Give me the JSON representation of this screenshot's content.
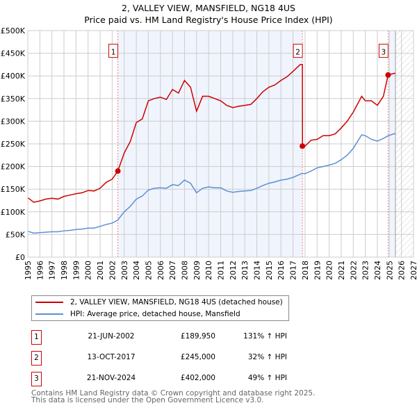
{
  "chart_data": {
    "type": "line",
    "title": "2, VALLEY VIEW, MANSFIELD, NG18 4US",
    "subtitle": "Price paid vs. HM Land Registry's House Price Index (HPI)",
    "xlim": [
      1995,
      2027
    ],
    "ylim": [
      0,
      500000
    ],
    "x_ticks": [
      "1995",
      "1996",
      "1997",
      "1998",
      "1999",
      "2000",
      "2001",
      "2002",
      "2003",
      "2004",
      "2005",
      "2006",
      "2007",
      "2008",
      "2009",
      "2010",
      "2011",
      "2012",
      "2013",
      "2014",
      "2015",
      "2016",
      "2017",
      "2018",
      "2019",
      "2020",
      "2021",
      "2022",
      "2023",
      "2024",
      "2025",
      "2026",
      "2027"
    ],
    "y_ticks": [
      {
        "v": 0,
        "label": "£0"
      },
      {
        "v": 50000,
        "label": "£50K"
      },
      {
        "v": 100000,
        "label": "£100K"
      },
      {
        "v": 150000,
        "label": "£150K"
      },
      {
        "v": 200000,
        "label": "£200K"
      },
      {
        "v": 250000,
        "label": "£250K"
      },
      {
        "v": 300000,
        "label": "£300K"
      },
      {
        "v": 350000,
        "label": "£350K"
      },
      {
        "v": 400000,
        "label": "£400K"
      },
      {
        "v": 450000,
        "label": "£450K"
      },
      {
        "v": 500000,
        "label": "£500K"
      }
    ],
    "grid": true,
    "shaded_ranges": [
      [
        2002.47,
        2017.78
      ],
      [
        2024.89,
        2025.5
      ]
    ],
    "hatched_from": 2025.5,
    "series": [
      {
        "name": "2, VALLEY VIEW, MANSFIELD, NG18 4US (detached house)",
        "color": "#cc0000",
        "x": [
          1995,
          1995.5,
          1996,
          1996.5,
          1997,
          1997.5,
          1998,
          1998.5,
          1999,
          1999.5,
          2000,
          2000.5,
          2001,
          2001.5,
          2002,
          2002.47,
          2003,
          2003.5,
          2004,
          2004.5,
          2005,
          2005.5,
          2006,
          2006.5,
          2007,
          2007.5,
          2008,
          2008.5,
          2009,
          2009.5,
          2010,
          2010.5,
          2011,
          2011.5,
          2012,
          2012.5,
          2013,
          2013.5,
          2014,
          2014.5,
          2015,
          2015.5,
          2016,
          2016.5,
          2017,
          2017.6,
          2017.78,
          2017.79,
          2018,
          2018.5,
          2019,
          2019.5,
          2020,
          2020.5,
          2021,
          2021.5,
          2022,
          2022.7,
          2023,
          2023.5,
          2024,
          2024.5,
          2024.89,
          2025,
          2025.5
        ],
        "y": [
          131,
          121,
          124,
          128,
          130,
          128,
          134,
          137,
          140,
          142,
          147,
          146,
          152,
          165,
          172,
          190,
          230,
          255,
          297,
          305,
          345,
          350,
          353,
          348,
          370,
          362,
          390,
          375,
          322,
          355,
          355,
          350,
          345,
          335,
          330,
          333,
          335,
          337,
          350,
          365,
          375,
          380,
          390,
          398,
          410,
          425,
          425,
          245,
          245,
          258,
          260,
          268,
          268,
          272,
          285,
          300,
          320,
          355,
          345,
          345,
          335,
          355,
          402,
          403,
          406
        ]
      },
      {
        "name": "HPI: Average price, detached house, Mansfield",
        "color": "#5b8fd4",
        "x": [
          1995,
          1995.5,
          1996,
          1996.5,
          1997,
          1997.5,
          1998,
          1998.5,
          1999,
          1999.5,
          2000,
          2000.5,
          2001,
          2001.5,
          2002,
          2002.47,
          2003,
          2003.5,
          2004,
          2004.5,
          2005,
          2005.5,
          2006,
          2006.5,
          2007,
          2007.5,
          2008,
          2008.5,
          2009,
          2009.5,
          2010,
          2010.5,
          2011,
          2011.5,
          2012,
          2012.5,
          2013,
          2013.5,
          2014,
          2014.5,
          2015,
          2015.5,
          2016,
          2016.5,
          2017,
          2017.78,
          2018,
          2018.5,
          2019,
          2019.5,
          2020,
          2020.5,
          2021,
          2021.5,
          2022,
          2022.7,
          2023,
          2023.5,
          2024,
          2024.5,
          2024.89,
          2025,
          2025.5
        ],
        "y": [
          57,
          53,
          54,
          55,
          56,
          56,
          58,
          59,
          61,
          62,
          64,
          64,
          68,
          72,
          75,
          82,
          100,
          112,
          128,
          135,
          148,
          152,
          153,
          152,
          160,
          158,
          170,
          163,
          142,
          152,
          155,
          153,
          153,
          146,
          143,
          145,
          146,
          147,
          152,
          158,
          163,
          166,
          170,
          172,
          176,
          185,
          184,
          190,
          197,
          200,
          203,
          207,
          215,
          225,
          240,
          270,
          268,
          260,
          256,
          262,
          268,
          269,
          273
        ]
      }
    ],
    "sales": [
      {
        "n": "1",
        "x": 2002.47,
        "y": 189950
      },
      {
        "n": "2",
        "x": 2017.78,
        "y": 245000
      },
      {
        "n": "3",
        "x": 2024.89,
        "y": 402000
      }
    ]
  },
  "legend": [
    {
      "label": "2, VALLEY VIEW, MANSFIELD, NG18 4US (detached house)",
      "color": "#cc0000"
    },
    {
      "label": "HPI: Average price, detached house, Mansfield",
      "color": "#5b8fd4"
    }
  ],
  "table": [
    {
      "n": "1",
      "date": "21-JUN-2002",
      "price": "£189,950",
      "hpi": "131% ↑ HPI"
    },
    {
      "n": "2",
      "date": "13-OCT-2017",
      "price": "£245,000",
      "hpi": "32% ↑ HPI"
    },
    {
      "n": "3",
      "date": "21-NOV-2024",
      "price": "£402,000",
      "hpi": "49% ↑ HPI"
    }
  ],
  "footer": [
    "Contains HM Land Registry data © Crown copyright and database right 2025.",
    "This data is licensed under the Open Government Licence v3.0."
  ]
}
